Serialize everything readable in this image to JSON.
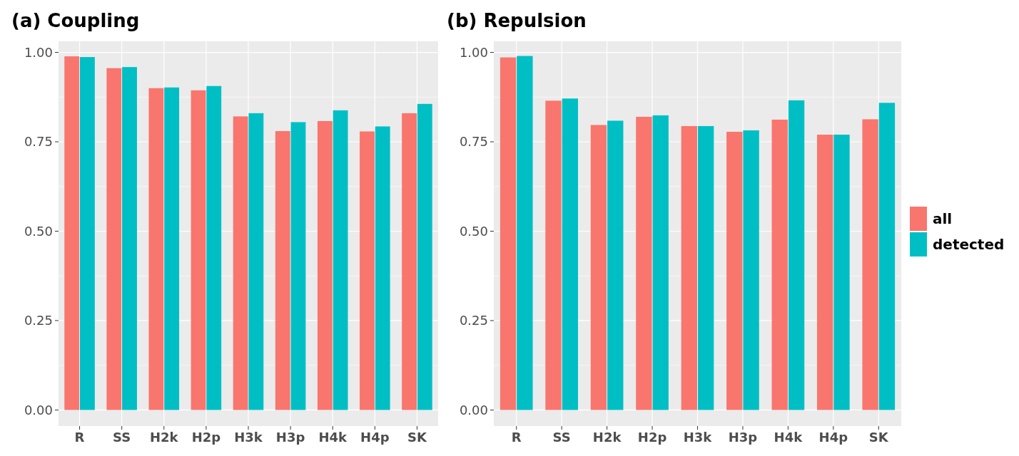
{
  "chart_data": [
    {
      "type": "bar",
      "title": "(a) Coupling",
      "categories": [
        "R",
        "SS",
        "H2k",
        "H2p",
        "H3k",
        "H3p",
        "H4k",
        "H4p",
        "SK"
      ],
      "series": [
        {
          "color": "#f8766d",
          "values": [
            0.989,
            0.956,
            0.9,
            0.894,
            0.821,
            0.78,
            0.808,
            0.779,
            0.83
          ]
        },
        {
          "color": "#00bfc4",
          "values": [
            0.987,
            0.959,
            0.902,
            0.906,
            0.83,
            0.805,
            0.838,
            0.793,
            0.856
          ]
        }
      ],
      "ylim": [
        -0.045,
        1.031
      ],
      "yticks": [
        {
          "value": 0,
          "label": "0.00"
        },
        {
          "value": 0.25,
          "label": "0.25"
        },
        {
          "value": 0.5,
          "label": "0.50"
        },
        {
          "value": 0.75,
          "label": "0.75"
        },
        {
          "value": 1,
          "label": "1.00"
        }
      ],
      "grid": true
    },
    {
      "type": "bar",
      "title": "(b) Repulsion",
      "categories": [
        "R",
        "SS",
        "H2k",
        "H2p",
        "H3k",
        "H3p",
        "H4k",
        "H4p",
        "SK"
      ],
      "series": [
        {
          "name": "all",
          "color": "#f8766d",
          "values": [
            0.986,
            0.865,
            0.797,
            0.82,
            0.794,
            0.778,
            0.812,
            0.77,
            0.813
          ]
        },
        {
          "name": "detected",
          "color": "#00bfc4",
          "values": [
            0.99,
            0.871,
            0.809,
            0.824,
            0.794,
            0.782,
            0.866,
            0.77,
            0.859
          ]
        }
      ],
      "ylim": [
        -0.045,
        1.031
      ],
      "yticks": [
        {
          "value": 0,
          "label": "0.00"
        },
        {
          "value": 0.25,
          "label": "0.25"
        },
        {
          "value": 0.5,
          "label": "0.50"
        },
        {
          "value": 0.75,
          "label": "0.75"
        },
        {
          "value": 1,
          "label": "1.00"
        }
      ],
      "grid": true,
      "legend": "right"
    }
  ]
}
